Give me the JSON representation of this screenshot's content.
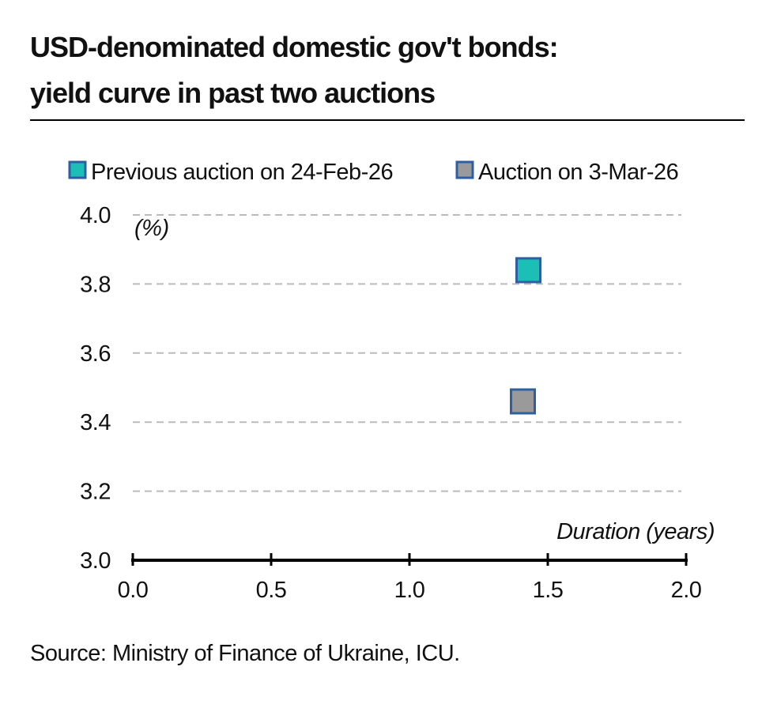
{
  "chart_data": {
    "type": "scatter",
    "title": [
      "USD-denominated domestic gov't bonds:",
      "yield curve in past two auctions"
    ],
    "y_unit_label": "(%)",
    "x_label": "Duration (years)",
    "source": "Source: Ministry of Finance of Ukraine, ICU.",
    "series": [
      {
        "name": "Previous auction on 24-Feb-26",
        "color": "#1bbfb5",
        "x": [
          1.43
        ],
        "values": [
          3.84
        ]
      },
      {
        "name": "Auction on 3-Mar-26",
        "color": "#9a9a9a",
        "x": [
          1.41
        ],
        "values": [
          3.46
        ]
      }
    ],
    "xlim": [
      0,
      2
    ],
    "xticks": [
      {
        "value": 0,
        "label": "0.0"
      },
      {
        "value": 0.5,
        "label": "0.5"
      },
      {
        "value": 1,
        "label": "1.0"
      },
      {
        "value": 1.5,
        "label": "1.5"
      },
      {
        "value": 2,
        "label": "2.0"
      }
    ],
    "ylim": [
      3,
      4
    ],
    "yticks": [
      {
        "value": 3,
        "label": "3.0"
      },
      3.2,
      3.4,
      3.6,
      3.8,
      {
        "value": 4,
        "label": "4.0"
      }
    ],
    "grid": true,
    "legend": "top"
  }
}
